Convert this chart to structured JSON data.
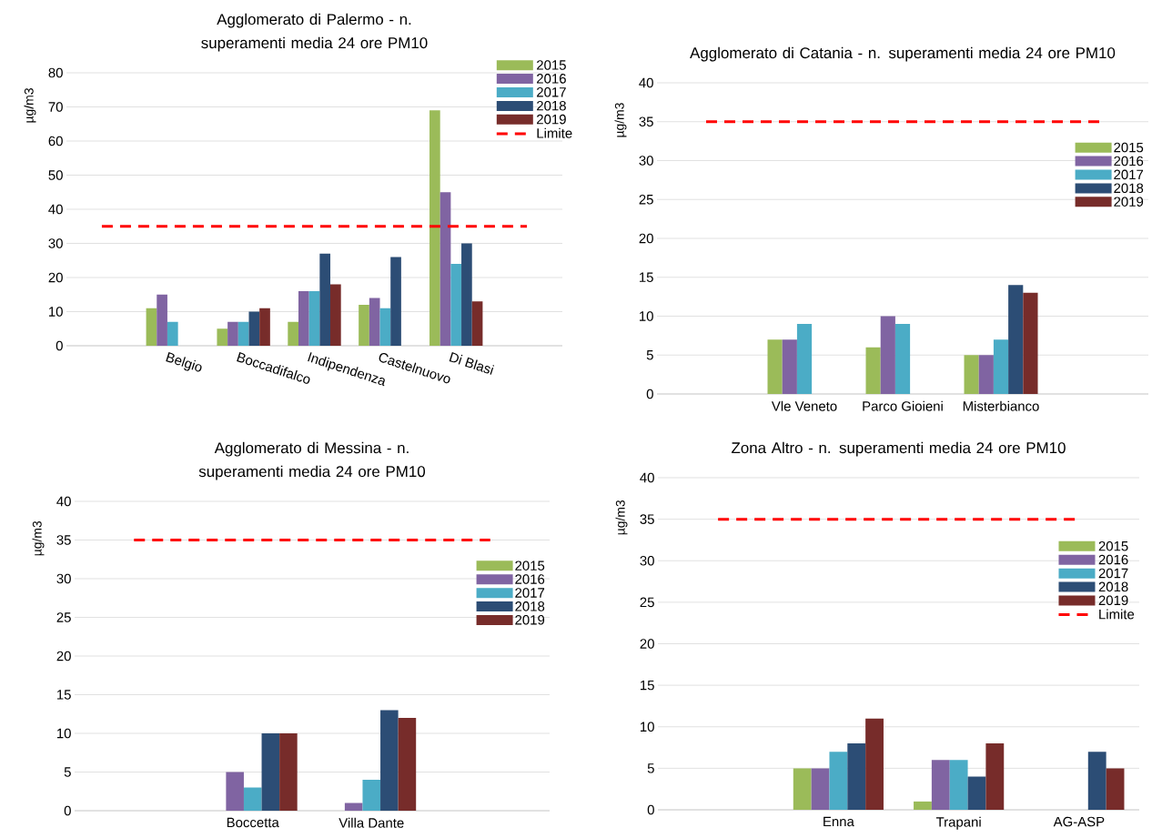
{
  "chart_data": [
    {
      "type": "bar",
      "title": "Agglomerato di Palermo - n. superamenti media 24 ore PM10",
      "ylabel": "µg/m3",
      "categories": [
        null,
        "Belgio",
        "Boccadifalco",
        "Indipendenza",
        "Castelnuovo",
        "Di Blasi",
        null
      ],
      "series": [
        {
          "name": "2015",
          "color": "#9bbb59",
          "values": [
            null,
            11,
            5,
            7,
            12,
            69,
            null
          ]
        },
        {
          "name": "2016",
          "color": "#8064a2",
          "values": [
            null,
            15,
            7,
            16,
            14,
            45,
            null
          ]
        },
        {
          "name": "2017",
          "color": "#4bacc6",
          "values": [
            null,
            7,
            7,
            16,
            11,
            24,
            null
          ]
        },
        {
          "name": "2018",
          "color": "#2c4d75",
          "values": [
            null,
            null,
            10,
            27,
            26,
            30,
            null
          ]
        },
        {
          "name": "2019",
          "color": "#772c2a",
          "values": [
            null,
            null,
            11,
            18,
            null,
            13,
            null
          ]
        }
      ],
      "ylim": [
        0,
        80
      ],
      "yticks": [
        0,
        10,
        20,
        30,
        40,
        50,
        60,
        70,
        80
      ],
      "grid": "y",
      "legend": "top right",
      "ref_lines": [
        {
          "axis": "y",
          "value": 35,
          "label": "Limite",
          "color": "#ff0000",
          "line_style": "dashed"
        }
      ]
    },
    {
      "type": "bar",
      "title": "Agglomerato di Catania - n. superamenti media 24 ore PM10",
      "ylabel": "µg/m3",
      "categories": [
        null,
        "Vle Veneto",
        "Parco Gioieni",
        "Misterbianco",
        null
      ],
      "series": [
        {
          "name": "2015",
          "color": "#9bbb59",
          "values": [
            null,
            7,
            6,
            5,
            null
          ]
        },
        {
          "name": "2016",
          "color": "#8064a2",
          "values": [
            null,
            7,
            10,
            5,
            null
          ]
        },
        {
          "name": "2017",
          "color": "#4bacc6",
          "values": [
            null,
            9,
            9,
            7,
            null
          ]
        },
        {
          "name": "2018",
          "color": "#2c4d75",
          "values": [
            null,
            null,
            null,
            14,
            null
          ]
        },
        {
          "name": "2019",
          "color": "#772c2a",
          "values": [
            null,
            null,
            null,
            13,
            null
          ]
        }
      ],
      "ylim": [
        0,
        40
      ],
      "yticks": [
        0,
        5,
        10,
        15,
        20,
        25,
        30,
        35,
        40
      ],
      "grid": "y",
      "legend": "right",
      "ref_lines": [
        {
          "axis": "y",
          "value": 35,
          "color": "#ff0000",
          "line_style": "dashed"
        }
      ]
    },
    {
      "type": "bar",
      "title": "Agglomerato di Messina - n. superamenti media 24 ore PM10",
      "ylabel": "µg/m3",
      "categories": [
        null,
        "Boccetta",
        "Villa Dante",
        null
      ],
      "series": [
        {
          "name": "2015",
          "color": "#9bbb59",
          "values": [
            null,
            null,
            null,
            null
          ]
        },
        {
          "name": "2016",
          "color": "#8064a2",
          "values": [
            null,
            5,
            1,
            null
          ]
        },
        {
          "name": "2017",
          "color": "#4bacc6",
          "values": [
            null,
            3,
            4,
            null
          ]
        },
        {
          "name": "2018",
          "color": "#2c4d75",
          "values": [
            null,
            10,
            13,
            null
          ]
        },
        {
          "name": "2019",
          "color": "#772c2a",
          "values": [
            null,
            10,
            12,
            null
          ]
        }
      ],
      "ylim": [
        0,
        40
      ],
      "yticks": [
        0,
        5,
        10,
        15,
        20,
        25,
        30,
        35,
        40
      ],
      "grid": "y",
      "legend": "right",
      "ref_lines": [
        {
          "axis": "y",
          "value": 35,
          "color": "#ff0000",
          "line_style": "dashed"
        }
      ]
    },
    {
      "type": "bar",
      "title": "Zona Altro - n. superamenti media 24 ore PM10",
      "ylabel": "µg/m3",
      "categories": [
        null,
        "Enna",
        "Trapani",
        "AG-ASP"
      ],
      "series": [
        {
          "name": "2015",
          "color": "#9bbb59",
          "values": [
            null,
            5,
            1,
            null
          ]
        },
        {
          "name": "2016",
          "color": "#8064a2",
          "values": [
            null,
            5,
            6,
            null
          ]
        },
        {
          "name": "2017",
          "color": "#4bacc6",
          "values": [
            null,
            7,
            6,
            null
          ]
        },
        {
          "name": "2018",
          "color": "#2c4d75",
          "values": [
            null,
            8,
            4,
            7
          ]
        },
        {
          "name": "2019",
          "color": "#772c2a",
          "values": [
            null,
            11,
            8,
            5
          ]
        }
      ],
      "ylim": [
        0,
        40
      ],
      "yticks": [
        0,
        5,
        10,
        15,
        20,
        25,
        30,
        35,
        40
      ],
      "grid": "y",
      "legend": "right",
      "ref_lines": [
        {
          "axis": "y",
          "value": 35,
          "label": "Limite",
          "color": "#ff0000",
          "line_style": "dashed"
        }
      ]
    }
  ]
}
